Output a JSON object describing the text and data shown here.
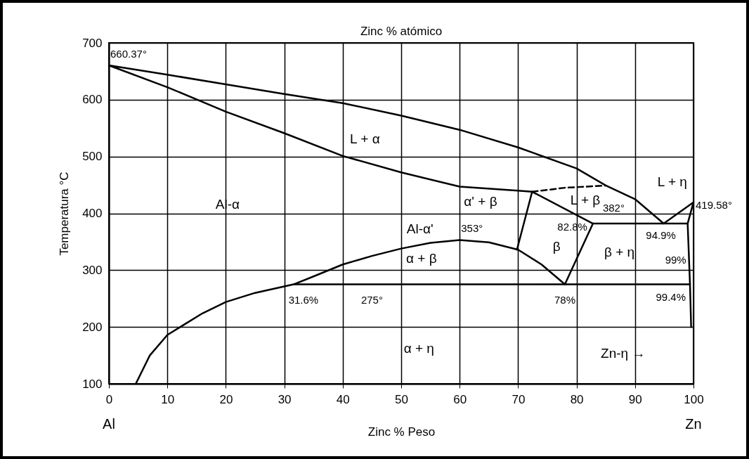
{
  "chart_data": {
    "type": "line",
    "x2label": "Zinc % atómico",
    "xlabel": "Zinc % Peso",
    "ylabel": "Temperatura °C",
    "xlim": [
      0,
      100
    ],
    "ylim": [
      100,
      700
    ],
    "xticks": [
      0,
      10,
      20,
      30,
      40,
      50,
      60,
      70,
      80,
      90,
      100
    ],
    "yticks": [
      100,
      200,
      300,
      400,
      500,
      600,
      700
    ],
    "grid": true,
    "series": [
      {
        "color": "#000000",
        "x": [
          72.4,
          70,
          60,
          50,
          40,
          30,
          20,
          10,
          0,
          10,
          20,
          30,
          40,
          50,
          60,
          70,
          80,
          85,
          90,
          94.9,
          100,
          99
        ],
        "values": [
          438,
          440,
          447,
          472,
          501,
          541,
          579,
          622,
          660.37,
          644,
          627,
          610,
          594,
          572,
          547,
          516,
          479,
          449,
          425,
          382,
          419.58,
          382
        ]
      },
      {
        "color": "#000000",
        "x": [
          4.6,
          7,
          10,
          13,
          16,
          20,
          25,
          31.6,
          35,
          40,
          45,
          50,
          55,
          60,
          65,
          70,
          74,
          78,
          82.8,
          72.4,
          69.8
        ],
        "values": [
          100,
          150,
          186,
          205,
          224,
          244,
          260,
          275,
          289,
          310,
          325,
          338,
          348,
          353,
          349,
          336,
          310,
          275,
          382,
          438,
          336
        ]
      },
      {
        "color": "#000000",
        "x": [
          31.6,
          99.4
        ],
        "values": [
          275,
          275
        ]
      },
      {
        "color": "#000000",
        "x": [
          82.8,
          99,
          99.4,
          99.6
        ],
        "values": [
          382,
          382,
          275,
          200
        ]
      },
      {
        "color": "#000000",
        "line_style": "dashed",
        "x": [
          72.4,
          78,
          85
        ],
        "values": [
          438,
          445,
          449
        ]
      }
    ],
    "annotations": [
      {
        "text": "660.37°",
        "x": 0,
        "y": 660.37
      },
      {
        "text": "382°",
        "x": 82.8,
        "y": 382
      },
      {
        "text": "82.8%",
        "x": 82.8,
        "y": 382
      },
      {
        "text": "419.58°",
        "x": 100,
        "y": 419.58
      },
      {
        "text": "353°",
        "x": 60,
        "y": 353
      },
      {
        "text": "275°",
        "x": 45,
        "y": 275
      },
      {
        "text": "31.6%",
        "x": 31.6,
        "y": 275
      },
      {
        "text": "78%",
        "x": 78,
        "y": 275
      },
      {
        "text": "94.9%",
        "x": 94.9,
        "y": 382
      },
      {
        "text": "99%",
        "x": 99,
        "y": 382
      },
      {
        "text": "99.4%",
        "x": 99.4,
        "y": 275
      },
      "L + α",
      "Al-α",
      "α' + β",
      "L + β",
      "L + η",
      "Al-α'",
      "β",
      "β + η",
      "α + β",
      "α + η",
      "Zn-η →",
      "Al",
      "Zn"
    ]
  }
}
